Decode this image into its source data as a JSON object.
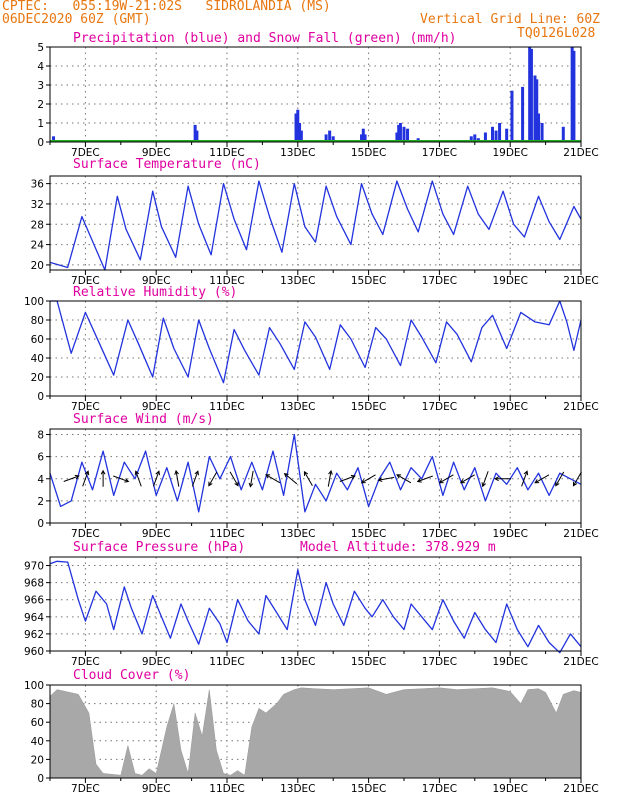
{
  "header": {
    "left_line1": "CPTEC:   055:19W-21:02S   SIDROLANDIA (MS)",
    "left_line2": "06DEC2020 60Z (GMT)",
    "right_line1": "Vertical Grid Line: 60Z",
    "right_line2": "TQ0126L028"
  },
  "colors": {
    "header": "#e8760f",
    "title": "#e000a0",
    "series": "#2233dd",
    "snow": "#22aa22",
    "cloud": "#a8a8a8"
  },
  "x_axis": {
    "ticks": [
      "7DEC",
      "9DEC",
      "11DEC",
      "13DEC",
      "15DEC",
      "17DEC",
      "19DEC",
      "21DEC"
    ]
  },
  "chart_data": [
    {
      "type": "bar",
      "title": "Precipitation (blue) and Snow Fall (green) (mm/h)",
      "ylim": [
        0,
        5
      ],
      "yticks": [
        0,
        1,
        2,
        3,
        4,
        5
      ],
      "series": [
        {
          "name": "Precipitation",
          "x": [
            6.1,
            6.5,
            10.1,
            10.15,
            12.95,
            13.0,
            13.05,
            13.1,
            13.8,
            13.9,
            14.0,
            14.8,
            14.85,
            14.9,
            15.8,
            15.85,
            15.9,
            16.0,
            16.1,
            16.4,
            17.9,
            18.0,
            18.1,
            18.3,
            18.5,
            18.6,
            18.7,
            18.9,
            19.05,
            19.35,
            19.55,
            19.6,
            19.7,
            19.75,
            19.8,
            19.9,
            20.5,
            20.75,
            20.8
          ],
          "values": [
            0.3,
            0.1,
            0.9,
            0.6,
            1.5,
            1.7,
            1.0,
            0.6,
            0.4,
            0.6,
            0.3,
            0.4,
            0.7,
            0.4,
            0.5,
            0.9,
            1.0,
            0.8,
            0.7,
            0.2,
            0.3,
            0.4,
            0.2,
            0.5,
            0.8,
            0.6,
            1.0,
            0.7,
            2.7,
            2.9,
            5.0,
            4.9,
            3.5,
            3.3,
            1.5,
            1.0,
            0.8,
            5.0,
            4.8
          ]
        },
        {
          "name": "Snow Fall",
          "x": [
            6.7
          ],
          "values": [
            0.1
          ]
        }
      ]
    },
    {
      "type": "line",
      "title": "Surface Temperature (nC)",
      "ylim": [
        19,
        37.5
      ],
      "yticks": [
        20,
        24,
        28,
        32,
        36
      ],
      "x": [
        6.0,
        6.5,
        6.9,
        7.15,
        7.55,
        7.9,
        8.15,
        8.55,
        8.9,
        9.15,
        9.55,
        9.9,
        10.2,
        10.55,
        10.9,
        11.2,
        11.55,
        11.9,
        12.2,
        12.55,
        12.9,
        13.2,
        13.5,
        13.8,
        14.1,
        14.5,
        14.8,
        15.1,
        15.4,
        15.8,
        16.1,
        16.4,
        16.8,
        17.1,
        17.4,
        17.8,
        18.1,
        18.4,
        18.8,
        19.1,
        19.4,
        19.8,
        20.1,
        20.4,
        20.8,
        21.0
      ],
      "values": [
        20.5,
        19.5,
        29.5,
        25.5,
        19.0,
        33.5,
        27.0,
        21.0,
        34.5,
        27.5,
        21.5,
        35.5,
        28.0,
        22.0,
        36.0,
        29.0,
        23.0,
        36.5,
        29.5,
        22.5,
        36.0,
        27.5,
        24.5,
        35.5,
        29.5,
        24.0,
        36.0,
        30.0,
        26.0,
        36.5,
        31.0,
        26.5,
        36.5,
        30.0,
        26.0,
        35.5,
        30.0,
        27.0,
        34.5,
        28.0,
        25.5,
        33.5,
        28.5,
        25.0,
        31.5,
        29.0
      ]
    },
    {
      "type": "line",
      "title": "Relative Humidity (%)",
      "ylim": [
        0,
        100
      ],
      "yticks": [
        0,
        20,
        40,
        60,
        80,
        100
      ],
      "x": [
        6.0,
        6.2,
        6.6,
        7.0,
        7.4,
        7.8,
        8.2,
        8.5,
        8.9,
        9.2,
        9.5,
        9.9,
        10.2,
        10.5,
        10.9,
        11.2,
        11.5,
        11.9,
        12.2,
        12.5,
        12.9,
        13.2,
        13.5,
        13.9,
        14.2,
        14.5,
        14.9,
        15.2,
        15.5,
        15.9,
        16.2,
        16.5,
        16.9,
        17.2,
        17.5,
        17.9,
        18.2,
        18.5,
        18.9,
        19.3,
        19.7,
        20.1,
        20.4,
        20.6,
        20.8,
        21.0
      ],
      "values": [
        100,
        100,
        45,
        88,
        55,
        22,
        80,
        55,
        20,
        82,
        50,
        20,
        80,
        50,
        14,
        70,
        48,
        22,
        72,
        55,
        28,
        78,
        62,
        28,
        75,
        60,
        30,
        72,
        60,
        32,
        80,
        62,
        35,
        78,
        65,
        36,
        72,
        85,
        50,
        88,
        78,
        75,
        100,
        78,
        48,
        80
      ]
    },
    {
      "type": "line",
      "title": "Surface Wind (m/s)",
      "ylim": [
        0,
        8.5
      ],
      "yticks": [
        0,
        2,
        4,
        6,
        8
      ],
      "x": [
        6.0,
        6.3,
        6.6,
        6.9,
        7.2,
        7.5,
        7.8,
        8.1,
        8.4,
        8.7,
        9.0,
        9.3,
        9.6,
        9.9,
        10.2,
        10.5,
        10.8,
        11.1,
        11.4,
        11.7,
        12.0,
        12.3,
        12.6,
        12.9,
        13.2,
        13.5,
        13.8,
        14.1,
        14.4,
        14.7,
        15.0,
        15.3,
        15.6,
        15.9,
        16.2,
        16.5,
        16.8,
        17.1,
        17.4,
        17.7,
        18.0,
        18.3,
        18.6,
        18.9,
        19.2,
        19.5,
        19.8,
        20.1,
        20.4,
        20.7,
        21.0
      ],
      "values": [
        4.5,
        1.5,
        2.0,
        5.5,
        3.0,
        6.5,
        2.5,
        5.5,
        4.0,
        6.5,
        2.5,
        5.0,
        2.0,
        5.5,
        1.0,
        6.0,
        4.0,
        6.0,
        3.0,
        5.5,
        3.0,
        6.5,
        2.5,
        8.0,
        1.0,
        3.5,
        2.0,
        4.5,
        3.0,
        5.0,
        1.5,
        4.0,
        5.5,
        3.0,
        5.0,
        4.0,
        6.0,
        2.5,
        5.5,
        3.0,
        5.0,
        2.0,
        4.5,
        3.5,
        5.0,
        3.0,
        4.5,
        2.5,
        4.5,
        4.0,
        3.5
      ],
      "wind_arrows": {
        "x": [
          6.6,
          7.0,
          7.5,
          8.0,
          8.5,
          9.0,
          9.6,
          10.1,
          10.6,
          11.2,
          11.7,
          12.3,
          12.8,
          13.3,
          13.9,
          14.4,
          15.0,
          15.5,
          16.0,
          16.6,
          17.2,
          17.8,
          18.3,
          18.8,
          19.4,
          19.9,
          20.4,
          20.9
        ],
        "from_deg": [
          250,
          200,
          180,
          290,
          160,
          200,
          170,
          200,
          30,
          330,
          10,
          120,
          130,
          150,
          190,
          250,
          60,
          80,
          120,
          70,
          60,
          60,
          20,
          90,
          200,
          60,
          30,
          30
        ]
      }
    },
    {
      "type": "line",
      "title": "Surface Pressure (hPa)",
      "annotation": "Model Altitude: 378.929  m",
      "ylim": [
        960,
        971
      ],
      "yticks": [
        960,
        962,
        964,
        966,
        968,
        970
      ],
      "x": [
        6.0,
        6.2,
        6.5,
        6.8,
        7.0,
        7.3,
        7.6,
        7.8,
        8.1,
        8.3,
        8.6,
        8.9,
        9.1,
        9.4,
        9.7,
        9.9,
        10.2,
        10.5,
        10.8,
        11.0,
        11.3,
        11.6,
        11.9,
        12.1,
        12.4,
        12.7,
        13.0,
        13.2,
        13.5,
        13.8,
        14.0,
        14.3,
        14.6,
        14.9,
        15.1,
        15.4,
        15.7,
        16.0,
        16.2,
        16.5,
        16.8,
        17.1,
        17.4,
        17.7,
        18.0,
        18.3,
        18.6,
        18.9,
        19.2,
        19.5,
        19.8,
        20.1,
        20.4,
        20.7,
        21.0
      ],
      "values": [
        970.2,
        970.5,
        970.4,
        966.0,
        963.5,
        967.0,
        965.5,
        962.5,
        967.5,
        965.0,
        962.0,
        966.5,
        964.5,
        961.5,
        965.5,
        963.5,
        960.8,
        965.0,
        963.2,
        961.0,
        966.0,
        963.5,
        962.0,
        966.5,
        964.5,
        962.5,
        969.5,
        966.0,
        963.0,
        968.0,
        965.5,
        963.0,
        967.0,
        965.0,
        964.0,
        966.0,
        964.0,
        962.5,
        965.5,
        964.0,
        962.5,
        966.0,
        963.5,
        961.5,
        964.5,
        962.5,
        961.0,
        965.5,
        962.5,
        960.5,
        963.0,
        961.0,
        959.8,
        962.0,
        960.5
      ]
    },
    {
      "type": "area",
      "title": "Cloud Cover (%)",
      "ylim": [
        0,
        100
      ],
      "yticks": [
        0,
        20,
        40,
        60,
        80,
        100
      ],
      "x": [
        6.0,
        6.2,
        6.8,
        7.1,
        7.3,
        7.5,
        8.0,
        8.2,
        8.4,
        8.6,
        8.8,
        9.0,
        9.3,
        9.5,
        9.7,
        9.9,
        10.1,
        10.3,
        10.5,
        10.7,
        10.9,
        11.1,
        11.3,
        11.5,
        11.7,
        11.9,
        12.1,
        12.4,
        12.6,
        12.9,
        13.1,
        13.5,
        14.0,
        14.5,
        15.0,
        15.5,
        16.0,
        16.5,
        17.0,
        17.5,
        18.0,
        18.5,
        19.0,
        19.3,
        19.5,
        19.8,
        20.0,
        20.3,
        20.5,
        20.8,
        21.0
      ],
      "values": [
        88,
        95,
        90,
        70,
        15,
        5,
        3,
        35,
        5,
        3,
        10,
        5,
        55,
        80,
        30,
        5,
        70,
        45,
        95,
        30,
        5,
        3,
        8,
        3,
        55,
        75,
        70,
        80,
        90,
        95,
        97,
        96,
        95,
        96,
        97,
        90,
        95,
        96,
        97,
        95,
        96,
        97,
        93,
        80,
        95,
        96,
        92,
        70,
        90,
        94,
        92
      ]
    }
  ]
}
